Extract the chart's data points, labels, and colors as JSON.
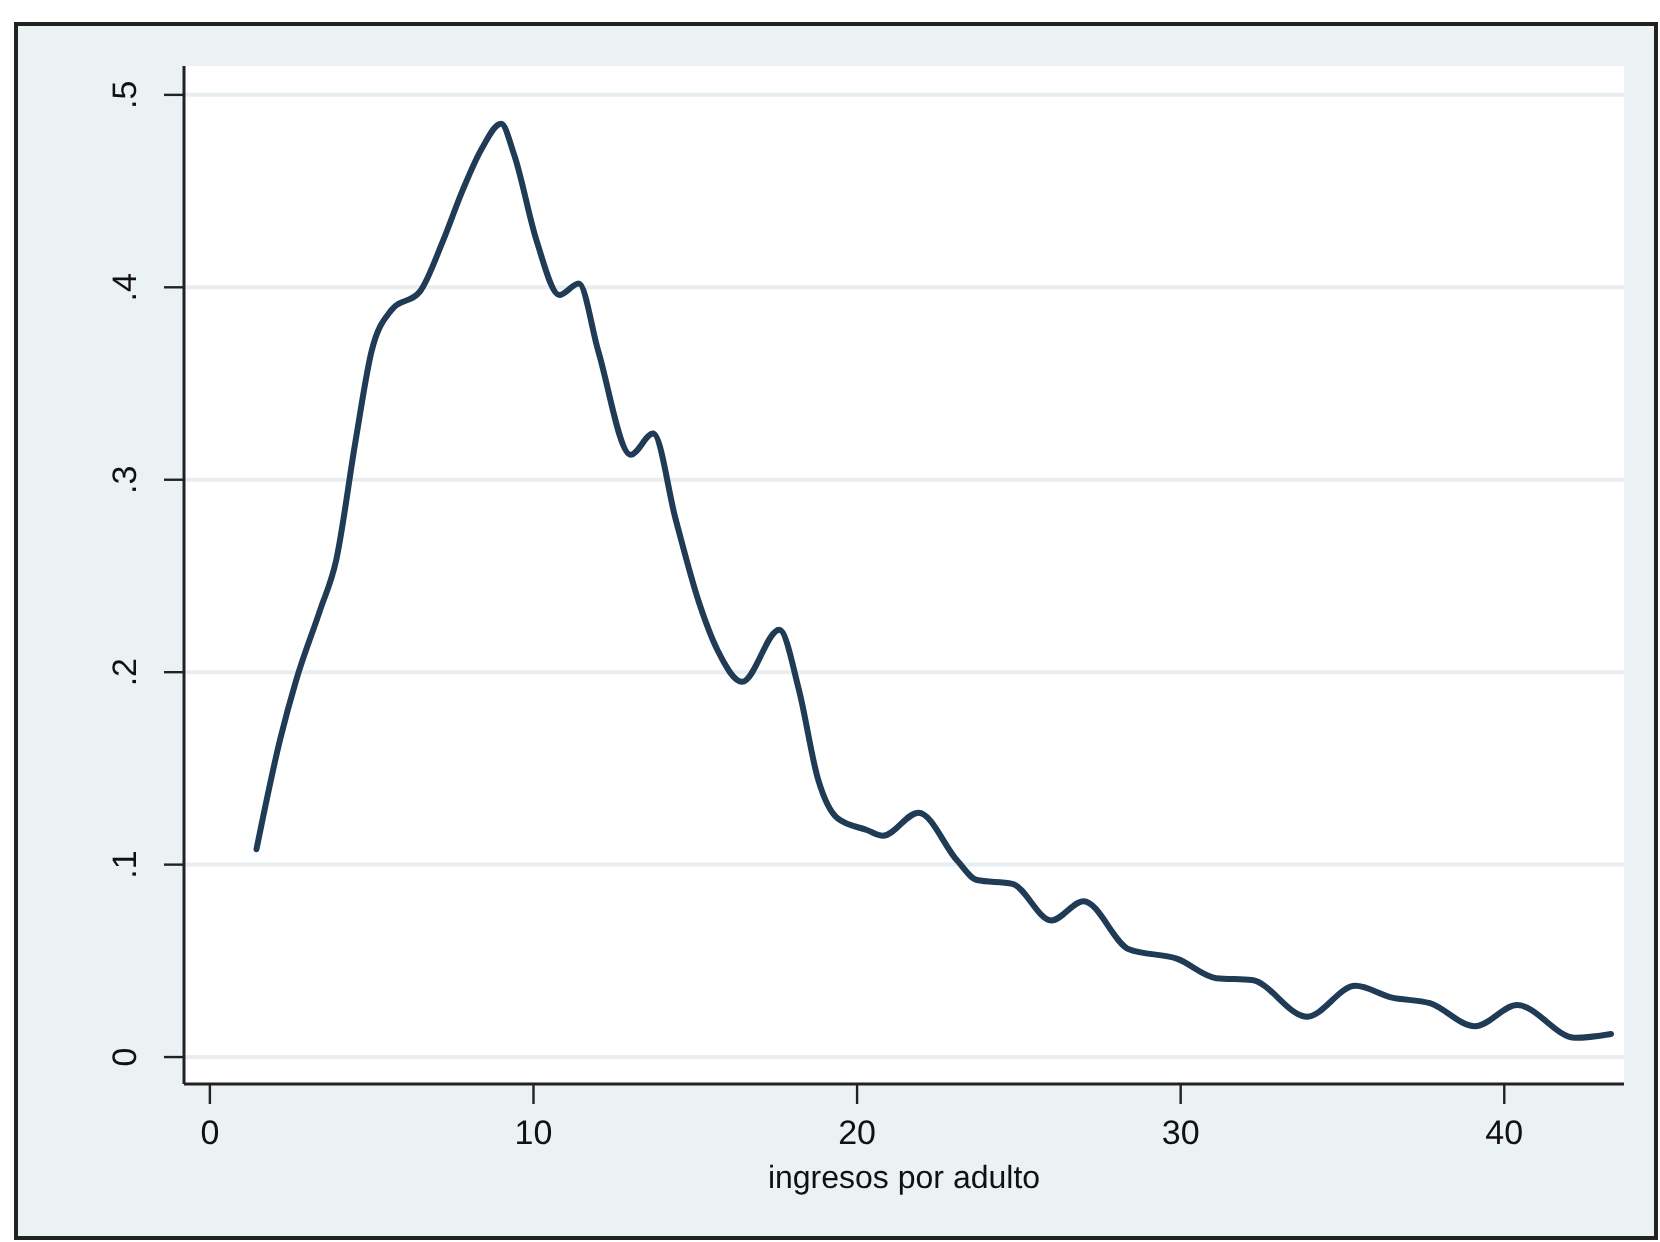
{
  "chart_data": {
    "type": "line",
    "xlabel": "ingresos por adulto",
    "xlim": [
      -0.8,
      43.7
    ],
    "ylim": [
      -0.014,
      0.515
    ],
    "xticks": [
      0,
      10,
      20,
      30,
      40
    ],
    "yticks": [
      {
        "value": 0,
        "label": "0"
      },
      {
        "value": 0.1,
        "label": ".1"
      },
      {
        "value": 0.2,
        "label": ".2"
      },
      {
        "value": 0.3,
        "label": ".3"
      },
      {
        "value": 0.4,
        "label": ".4"
      },
      {
        "value": 0.5,
        "label": ".5"
      }
    ],
    "grid": "y",
    "series": [
      {
        "color": "#1f3b55",
        "x": [
          1.44,
          2.17,
          2.67,
          3.4,
          3.9,
          4.5,
          5.0,
          5.6,
          6.5,
          7.2,
          7.8,
          8.4,
          9.0,
          9.4,
          10.1,
          10.8,
          11.4,
          12.0,
          13.0,
          13.7,
          14.4,
          15.1,
          15.7,
          16.45,
          17.6,
          18.2,
          18.8,
          19.4,
          20.3,
          20.8,
          21.9,
          23.1,
          23.7,
          24.8,
          26.0,
          27.0,
          28.4,
          29.9,
          31.1,
          32.2,
          33.9,
          35.4,
          36.5,
          37.7,
          39.1,
          40.4,
          42.2,
          43.3
        ],
        "values": [
          0.108,
          0.165,
          0.196,
          0.232,
          0.258,
          0.32,
          0.367,
          0.388,
          0.398,
          0.424,
          0.45,
          0.472,
          0.485,
          0.469,
          0.424,
          0.396,
          0.402,
          0.367,
          0.313,
          0.324,
          0.279,
          0.237,
          0.211,
          0.195,
          0.222,
          0.191,
          0.144,
          0.124,
          0.118,
          0.115,
          0.127,
          0.102,
          0.092,
          0.09,
          0.071,
          0.081,
          0.056,
          0.051,
          0.041,
          0.04,
          0.021,
          0.037,
          0.031,
          0.028,
          0.016,
          0.027,
          0.01,
          0.012
        ]
      }
    ]
  }
}
